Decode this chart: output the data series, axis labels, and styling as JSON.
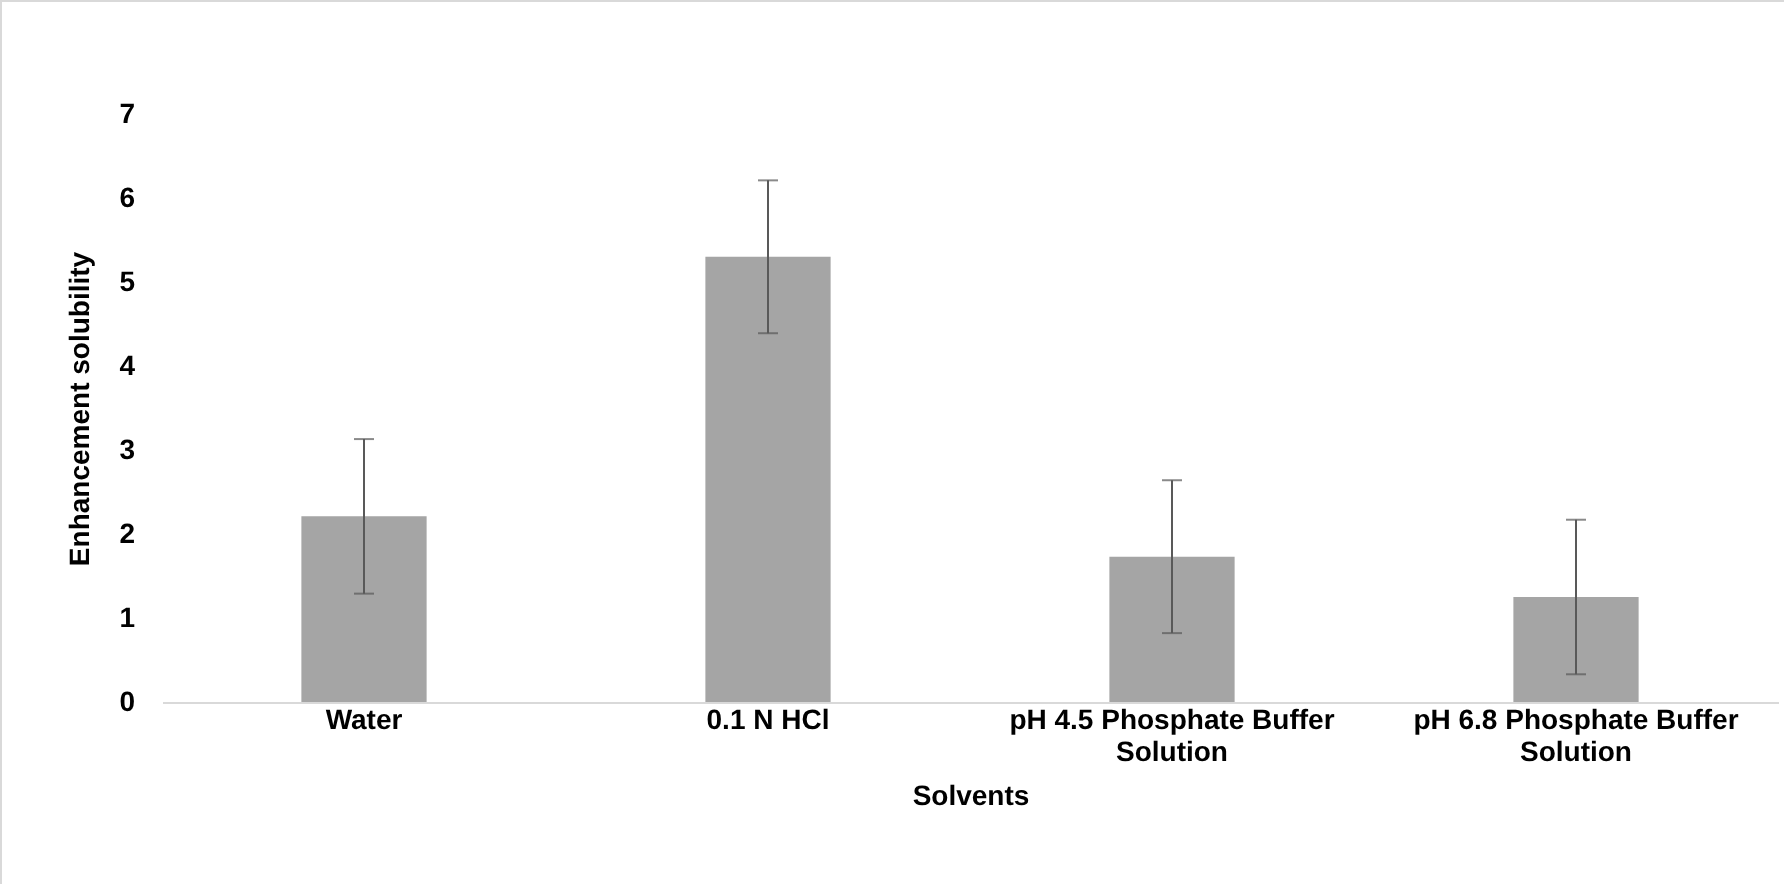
{
  "chart_data": {
    "type": "bar",
    "xlabel": "Solvents",
    "ylabel": "Enhancement solubility",
    "categories": [
      "Water",
      "0.1 N HCl",
      "pH 4.5 Phosphate Buffer Solution",
      "pH 6.8 Phosphate Buffer Solution"
    ],
    "values": [
      2.21,
      5.3,
      1.73,
      1.25
    ],
    "errors": [
      0.92,
      0.91,
      0.91,
      0.92
    ],
    "color": "#a5a5a5",
    "ylim": [
      0,
      7
    ],
    "yticks": [
      0,
      1,
      2,
      3,
      4,
      5,
      6,
      7
    ],
    "grid": false
  }
}
